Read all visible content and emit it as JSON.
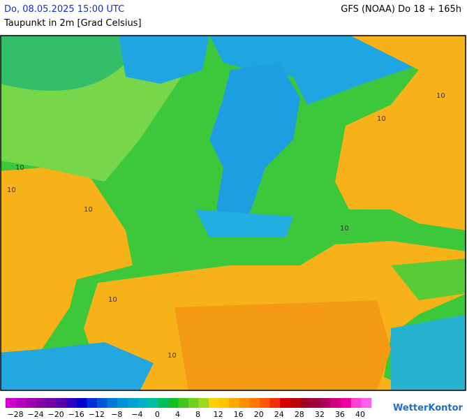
{
  "header": {
    "valid_time": "Do, 08.05.2025 15:00 UTC",
    "model_run": "GFS (NOAA) Do 18 + 165h",
    "parameter": "Taupunkt in 2m [Grad Celsius]"
  },
  "contour_labels": [
    "10",
    "10",
    "10",
    "10",
    "10",
    "10",
    "10",
    "10"
  ],
  "legend": {
    "labels": [
      "−28",
      "−24",
      "−20",
      "−16",
      "−12",
      "−8",
      "−4",
      "0",
      "4",
      "8",
      "12",
      "16",
      "20",
      "24",
      "28",
      "32",
      "36",
      "40"
    ],
    "colors": [
      "#d000d0",
      "#b800c0",
      "#a000b0",
      "#8800a8",
      "#7000a8",
      "#5800b0",
      "#3000c0",
      "#0000d0",
      "#0030d8",
      "#0058d8",
      "#0078d8",
      "#0090d8",
      "#00a0d0",
      "#00b0c8",
      "#00c0a0",
      "#00c060",
      "#10c020",
      "#40c820",
      "#70d020",
      "#a0d820",
      "#ffd000",
      "#ffc000",
      "#ffa800",
      "#ff9000",
      "#ff7800",
      "#ff5800",
      "#f03000",
      "#d80000",
      "#c00000",
      "#a00020",
      "#a00040",
      "#b00060",
      "#d00080",
      "#f000a0",
      "#ff40d0",
      "#ff60f0"
    ]
  },
  "footer": {
    "logo": "WetterKontor"
  }
}
